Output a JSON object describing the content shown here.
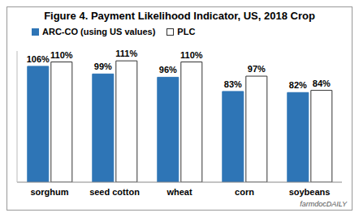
{
  "chart_data": {
    "type": "bar",
    "title": "Figure 4.  Payment Likelihood Indicator, US, 2018 Crop",
    "categories": [
      "sorghum",
      "seed cotton",
      "wheat",
      "corn",
      "soybeans"
    ],
    "series": [
      {
        "name": "ARC-CO (using US values)",
        "color": "#2e75b6",
        "values": [
          106,
          99,
          96,
          83,
          82
        ],
        "value_labels": [
          "106%",
          "99%",
          "96%",
          "83%",
          "82%"
        ]
      },
      {
        "name": "PLC",
        "color": "#ffffff",
        "values": [
          110,
          111,
          110,
          97,
          84
        ],
        "value_labels": [
          "110%",
          "111%",
          "110%",
          "97%",
          "84%"
        ]
      }
    ],
    "ylim": [
      0,
      120
    ],
    "tick_labels": "x",
    "data_labels": true,
    "legend": "top-left",
    "annotations": [
      "farmdocDAILY"
    ]
  }
}
